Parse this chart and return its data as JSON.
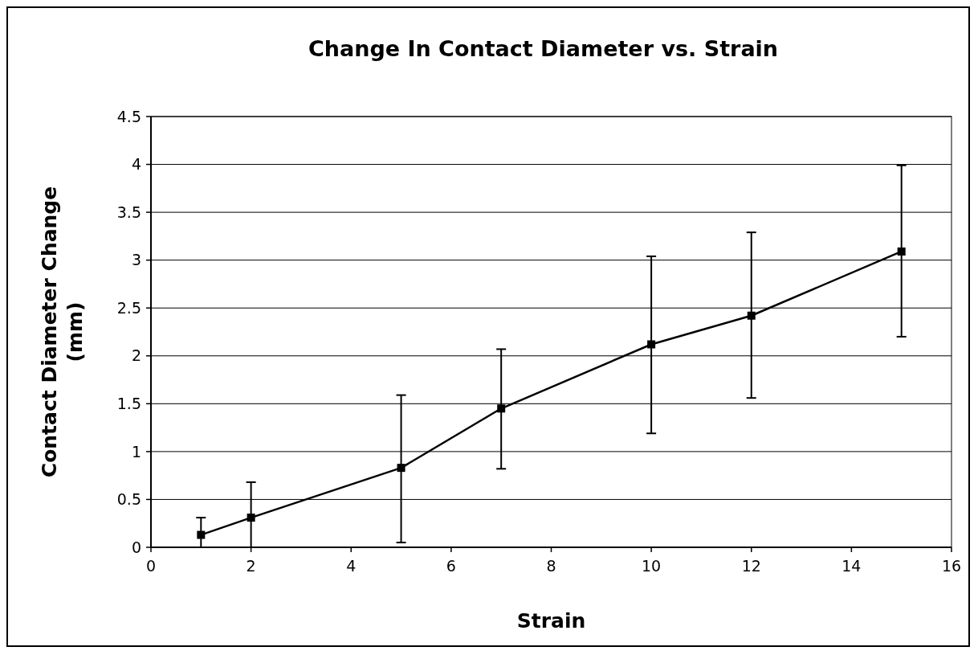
{
  "chart_data": {
    "type": "line",
    "title": "Change In Contact Diameter vs. Strain",
    "xlabel": "Strain",
    "ylabel": "Contact Diameter Change (mm)",
    "x": [
      1,
      2,
      5,
      7,
      10,
      12,
      15
    ],
    "series": [
      {
        "color": "#000000",
        "values": [
          0.13,
          0.31,
          0.83,
          1.45,
          2.12,
          2.42,
          3.09
        ],
        "errors": [
          [
            0,
            0.31
          ],
          [
            0,
            0.68
          ],
          [
            0.05,
            1.59
          ],
          [
            0.82,
            2.07
          ],
          [
            1.19,
            3.04
          ],
          [
            1.56,
            3.29
          ],
          [
            2.2,
            3.99
          ]
        ]
      }
    ],
    "xlim": [
      0,
      16
    ],
    "xticks": [
      0,
      2,
      4,
      6,
      8,
      10,
      12,
      14,
      16
    ],
    "ylim": [
      0,
      4.5
    ],
    "yticks": [
      0,
      0.5,
      1,
      1.5,
      2,
      2.5,
      3,
      3.5,
      4,
      4.5
    ],
    "grid": "y",
    "marker": "square",
    "line_style": "solid"
  }
}
